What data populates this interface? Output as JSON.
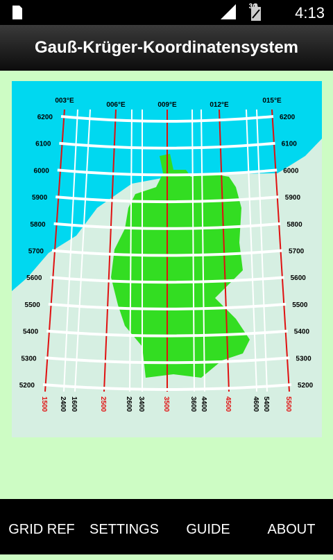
{
  "status_bar": {
    "network": "3G",
    "time": "4:13"
  },
  "header": {
    "title": "Gauß-Krüger-Koordinatensystem"
  },
  "map": {
    "longitudes": [
      "003°E",
      "006°E",
      "009°E",
      "012°E",
      "015°E"
    ],
    "northings": [
      "6200",
      "6100",
      "6000",
      "5900",
      "5800",
      "5700",
      "5600",
      "5500",
      "5400",
      "5300",
      "5200"
    ],
    "eastings": [
      "1500",
      "2400",
      "1600",
      "2500",
      "2600",
      "3400",
      "3500",
      "3600",
      "4400",
      "4500",
      "4600",
      "5400",
      "5500"
    ]
  },
  "bottom_nav": [
    "GRID REF",
    "SETTINGS",
    "GUIDE",
    "ABOUT"
  ]
}
